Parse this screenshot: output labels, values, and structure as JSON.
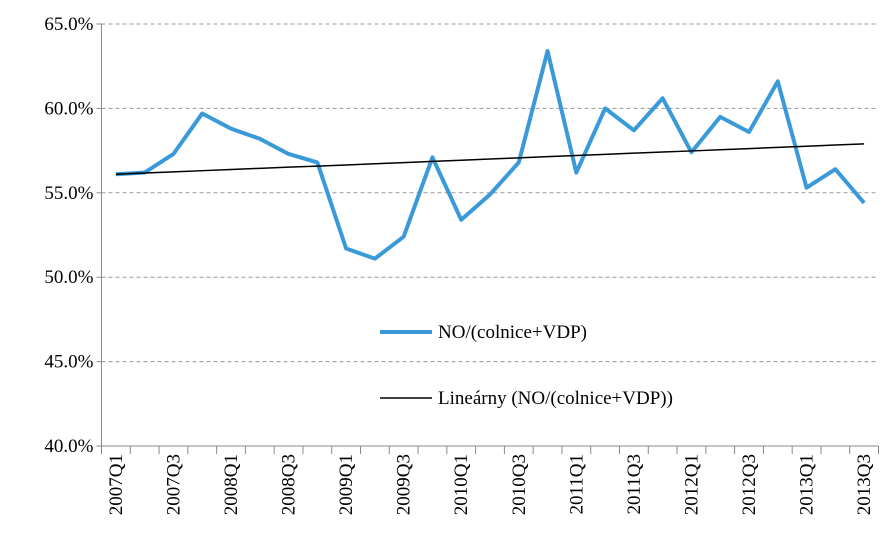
{
  "chart_data": {
    "type": "line",
    "categories": [
      "2007Q1",
      null,
      "2007Q3",
      null,
      "2008Q1",
      null,
      "2008Q3",
      null,
      "2009Q1",
      null,
      "2009Q3",
      null,
      "2010Q1",
      null,
      "2010Q3",
      null,
      "2011Q1",
      null,
      "2011Q3",
      null,
      "2012Q1",
      null,
      "2012Q3",
      null,
      "2013Q1",
      null,
      "2013Q3"
    ],
    "series": [
      {
        "name": "NO/(colnice+VDP)",
        "color": "#3a9ad9",
        "values": [
          56.1,
          56.2,
          57.3,
          59.7,
          58.8,
          58.2,
          57.3,
          56.8,
          51.7,
          51.1,
          52.4,
          57.1,
          53.4,
          54.9,
          56.8,
          63.4,
          56.2,
          60.0,
          58.7,
          60.6,
          57.4,
          59.5,
          58.6,
          61.6,
          55.3,
          56.4,
          54.4
        ]
      },
      {
        "name": "Lineárny (NO/(colnice+VDP))",
        "color": "#000000",
        "values": [
          56.1,
          56.17,
          56.24,
          56.31,
          56.38,
          56.45,
          56.52,
          56.58,
          56.65,
          56.72,
          56.79,
          56.86,
          56.93,
          57.0,
          57.07,
          57.14,
          57.21,
          57.28,
          57.35,
          57.42,
          57.48,
          57.55,
          57.62,
          57.69,
          57.76,
          57.83,
          57.9
        ]
      }
    ],
    "ylim": [
      40,
      65
    ],
    "yticks": [
      {
        "value": 40,
        "label": "40.0%"
      },
      {
        "value": 45,
        "label": "45.0%"
      },
      {
        "value": 50,
        "label": "50.0%"
      },
      {
        "value": 55,
        "label": "55.0%"
      },
      {
        "value": 60,
        "label": "60.0%"
      },
      {
        "value": 65,
        "label": "65.0%"
      }
    ],
    "grid": true
  }
}
